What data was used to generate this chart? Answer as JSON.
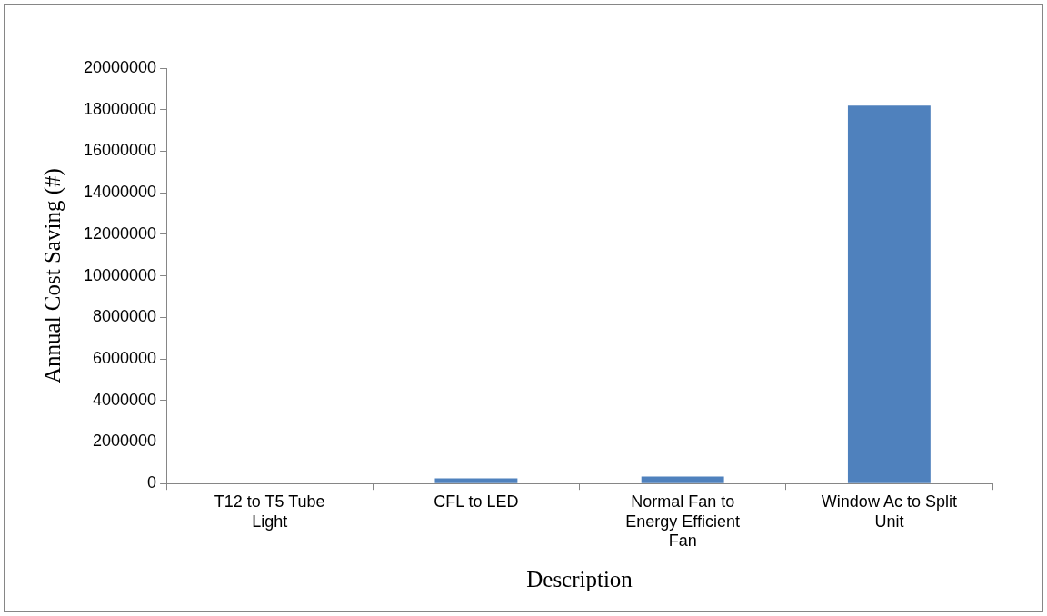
{
  "chart_data": {
    "type": "bar",
    "xlabel": "Description",
    "ylabel": "Annual Cost Saving (#)",
    "categories": [
      "T12 to T5 Tube Light",
      "CFL to LED",
      "Normal Fan to Energy Efficient Fan",
      "Window Ac to Split Unit"
    ],
    "values": [
      20000,
      250000,
      340000,
      18200000
    ],
    "color": "#4f81bd",
    "ylim": [
      0,
      20000000
    ],
    "yticks": [
      0,
      2000000,
      4000000,
      6000000,
      8000000,
      10000000,
      12000000,
      14000000,
      16000000,
      18000000,
      20000000
    ],
    "grid": false,
    "legend": false
  }
}
